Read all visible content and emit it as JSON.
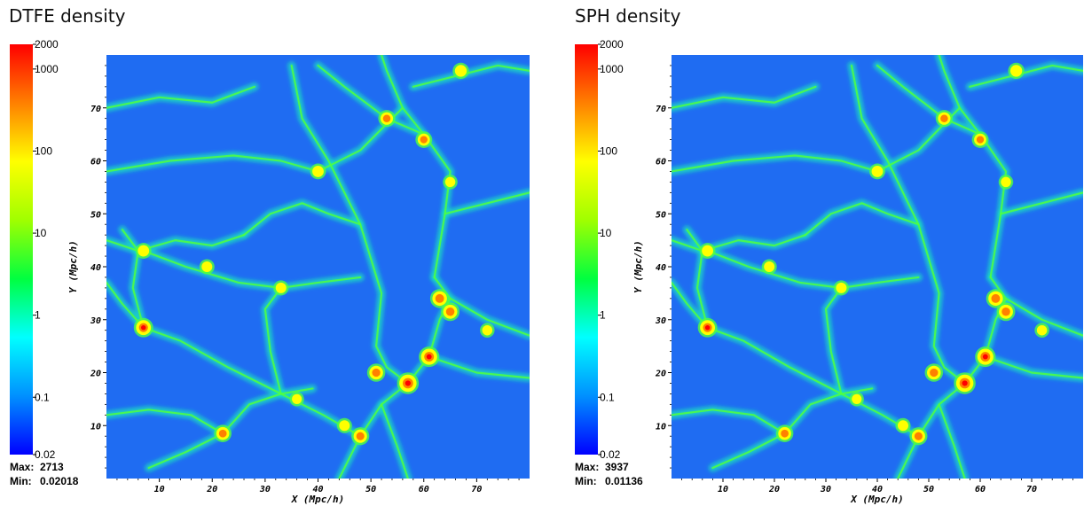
{
  "chart_data": [
    {
      "type": "heatmap",
      "title": "DTFE density",
      "xlabel": "X (Mpc/h)",
      "ylabel": "Y (Mpc/h)",
      "xlim": [
        0,
        80
      ],
      "ylim": [
        0,
        80
      ],
      "x_ticks": [
        10,
        20,
        30,
        40,
        50,
        60,
        70
      ],
      "y_ticks": [
        10,
        20,
        30,
        40,
        50,
        60,
        70
      ],
      "colorbar": {
        "scale": "log",
        "range": [
          0.02,
          2000
        ],
        "ticks": [
          {
            "value": 2000,
            "label": "2000"
          },
          {
            "value": 1000,
            "label": "1000"
          },
          {
            "value": 100,
            "label": "100"
          },
          {
            "value": 10,
            "label": "10"
          },
          {
            "value": 1,
            "label": "1"
          },
          {
            "value": 0.1,
            "label": "0.1"
          },
          {
            "value": 0.02,
            "label": "0.02"
          }
        ],
        "colors": [
          "#0000ff",
          "#0090ff",
          "#00ffff",
          "#00ff40",
          "#a0ff00",
          "#ffff00",
          "#ff8000",
          "#ff0000"
        ]
      },
      "stats": {
        "max_label": "Max:",
        "max_value": "2713",
        "min_label": "Min:",
        "min_value": "0.02018"
      }
    },
    {
      "type": "heatmap",
      "title": "SPH density",
      "xlabel": "X (Mpc/h)",
      "ylabel": "Y (Mpc/h)",
      "xlim": [
        0,
        80
      ],
      "ylim": [
        0,
        80
      ],
      "x_ticks": [
        10,
        20,
        30,
        40,
        50,
        60,
        70
      ],
      "y_ticks": [
        10,
        20,
        30,
        40,
        50,
        60,
        70
      ],
      "colorbar": {
        "scale": "log",
        "range": [
          0.02,
          2000
        ],
        "ticks": [
          {
            "value": 2000,
            "label": "2000"
          },
          {
            "value": 1000,
            "label": "1000"
          },
          {
            "value": 100,
            "label": "100"
          },
          {
            "value": 10,
            "label": "10"
          },
          {
            "value": 1,
            "label": "1"
          },
          {
            "value": 0.1,
            "label": "0.1"
          },
          {
            "value": 0.02,
            "label": "0.02"
          }
        ],
        "colors": [
          "#0000ff",
          "#0090ff",
          "#00ffff",
          "#00ff40",
          "#a0ff00",
          "#ffff00",
          "#ff8000",
          "#ff0000"
        ]
      },
      "stats": {
        "max_label": "Max:",
        "max_value": "3937",
        "min_label": "Min:",
        "min_value": "0.01136"
      }
    }
  ],
  "field": {
    "background": "#1f6cf2",
    "filament_color": "#19e0c0",
    "filament_core_color": "#50ff40",
    "halo_color_low": "#ffff00",
    "halo_color_mid": "#ff8000",
    "halo_color_high": "#ff0000",
    "filaments": [
      [
        [
          7,
          28.5
        ],
        [
          14,
          26
        ],
        [
          23,
          21
        ],
        [
          33,
          16
        ],
        [
          41,
          12
        ],
        [
          48,
          8
        ]
      ],
      [
        [
          7,
          28.5
        ],
        [
          5,
          36
        ],
        [
          6,
          43
        ],
        [
          3,
          47
        ]
      ],
      [
        [
          7,
          28.5
        ],
        [
          3,
          33
        ],
        [
          0,
          37
        ]
      ],
      [
        [
          22,
          8.5
        ],
        [
          27,
          14
        ],
        [
          33,
          16
        ],
        [
          39,
          17
        ]
      ],
      [
        [
          48,
          8
        ],
        [
          52,
          14
        ],
        [
          57,
          18
        ],
        [
          61,
          23
        ],
        [
          63,
          30
        ],
        [
          65,
          34
        ],
        [
          62,
          38
        ]
      ],
      [
        [
          57,
          18
        ],
        [
          53,
          21
        ],
        [
          51,
          25
        ],
        [
          52,
          35
        ],
        [
          48,
          48
        ],
        [
          42,
          60
        ],
        [
          37,
          68
        ],
        [
          35,
          78
        ]
      ],
      [
        [
          62,
          38
        ],
        [
          64,
          50
        ],
        [
          65,
          58
        ],
        [
          60,
          65
        ],
        [
          56,
          70
        ],
        [
          53,
          77
        ],
        [
          52,
          80
        ]
      ],
      [
        [
          60,
          65
        ],
        [
          53,
          68
        ],
        [
          45,
          74
        ],
        [
          40,
          78
        ]
      ],
      [
        [
          0,
          58
        ],
        [
          12,
          60
        ],
        [
          24,
          61
        ],
        [
          33,
          60
        ],
        [
          40,
          58
        ]
      ],
      [
        [
          7,
          43
        ],
        [
          15,
          40
        ],
        [
          25,
          37
        ],
        [
          33,
          36
        ],
        [
          40,
          37
        ],
        [
          48,
          38
        ]
      ],
      [
        [
          65,
          34
        ],
        [
          72,
          30
        ],
        [
          80,
          27
        ]
      ],
      [
        [
          61,
          23
        ],
        [
          70,
          20
        ],
        [
          80,
          19
        ]
      ],
      [
        [
          0,
          45
        ],
        [
          6,
          43
        ],
        [
          13,
          45
        ],
        [
          20,
          44
        ],
        [
          26,
          46
        ]
      ],
      [
        [
          48,
          8
        ],
        [
          46,
          4
        ],
        [
          44,
          0
        ]
      ],
      [
        [
          22,
          8.5
        ],
        [
          15,
          5
        ],
        [
          8,
          2
        ]
      ],
      [
        [
          52,
          14
        ],
        [
          55,
          6
        ],
        [
          57,
          0
        ]
      ],
      [
        [
          40,
          58
        ],
        [
          48,
          62
        ],
        [
          56,
          70
        ]
      ],
      [
        [
          0,
          12
        ],
        [
          8,
          13
        ],
        [
          16,
          12
        ],
        [
          22,
          8.5
        ]
      ],
      [
        [
          33,
          16
        ],
        [
          31,
          24
        ],
        [
          30,
          32
        ],
        [
          33,
          36
        ]
      ],
      [
        [
          64,
          50
        ],
        [
          72,
          52
        ],
        [
          80,
          54
        ]
      ],
      [
        [
          58,
          74
        ],
        [
          66,
          76
        ],
        [
          74,
          78
        ],
        [
          80,
          77
        ]
      ],
      [
        [
          0,
          70
        ],
        [
          10,
          72
        ],
        [
          20,
          71
        ],
        [
          28,
          74
        ]
      ],
      [
        [
          26,
          46
        ],
        [
          31,
          50
        ],
        [
          37,
          52
        ],
        [
          42,
          50
        ],
        [
          48,
          48
        ]
      ]
    ],
    "halos": [
      {
        "x": 57,
        "y": 18,
        "density": 2000
      },
      {
        "x": 61,
        "y": 23,
        "density": 1000
      },
      {
        "x": 7,
        "y": 28.5,
        "density": 500
      },
      {
        "x": 63,
        "y": 34,
        "density": 400
      },
      {
        "x": 65,
        "y": 31.5,
        "density": 300
      },
      {
        "x": 51,
        "y": 20,
        "density": 250
      },
      {
        "x": 48,
        "y": 8,
        "density": 200
      },
      {
        "x": 22,
        "y": 8.5,
        "density": 150
      },
      {
        "x": 53,
        "y": 68,
        "density": 120
      },
      {
        "x": 60,
        "y": 64,
        "density": 100
      },
      {
        "x": 67,
        "y": 77,
        "density": 80
      },
      {
        "x": 7,
        "y": 43,
        "density": 60
      },
      {
        "x": 40,
        "y": 58,
        "density": 60
      },
      {
        "x": 19,
        "y": 40,
        "density": 40
      },
      {
        "x": 33,
        "y": 36,
        "density": 40
      },
      {
        "x": 45,
        "y": 10,
        "density": 40
      },
      {
        "x": 65,
        "y": 56,
        "density": 30
      },
      {
        "x": 72,
        "y": 28,
        "density": 30
      },
      {
        "x": 36,
        "y": 15,
        "density": 25
      }
    ]
  }
}
